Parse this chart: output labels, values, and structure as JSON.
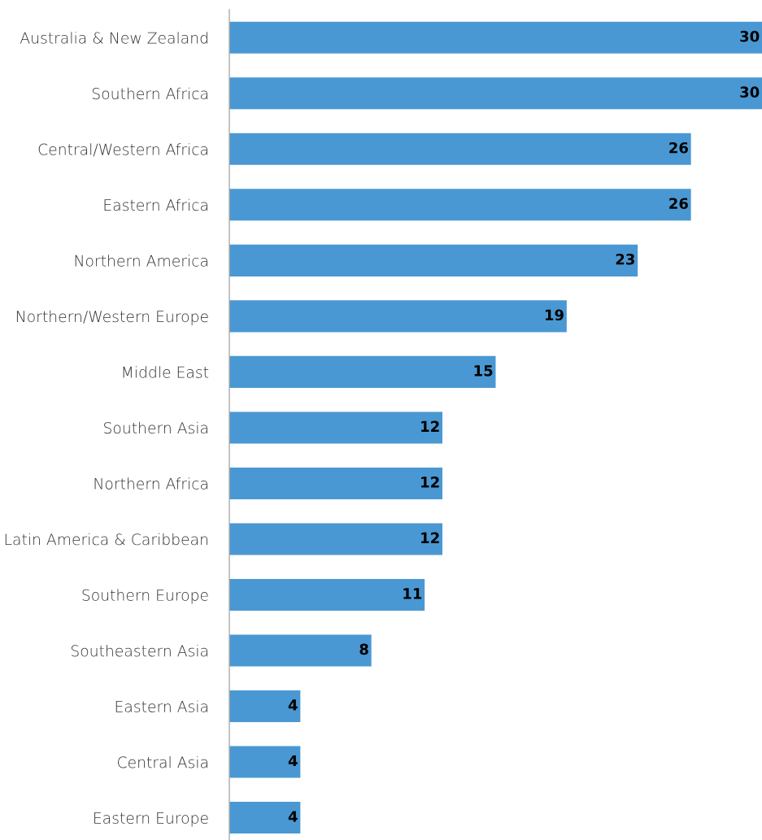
{
  "chart_data": {
    "type": "bar",
    "orientation": "horizontal",
    "data_labels": true,
    "categories": [
      "Australia & New Zealand",
      "Southern Africa",
      "Central/Western Africa",
      "Eastern Africa",
      "Northern America",
      "Northern/Western Europe",
      "Middle East",
      "Southern Asia",
      "Northern Africa",
      "Latin America & Caribbean",
      "Southern Europe",
      "Southeastern Asia",
      "Eastern Asia",
      "Central Asia",
      "Eastern Europe"
    ],
    "values": [
      30,
      30,
      26,
      26,
      23,
      19,
      15,
      12,
      12,
      12,
      11,
      8,
      4,
      4,
      4
    ],
    "color": "#4a98d3"
  }
}
